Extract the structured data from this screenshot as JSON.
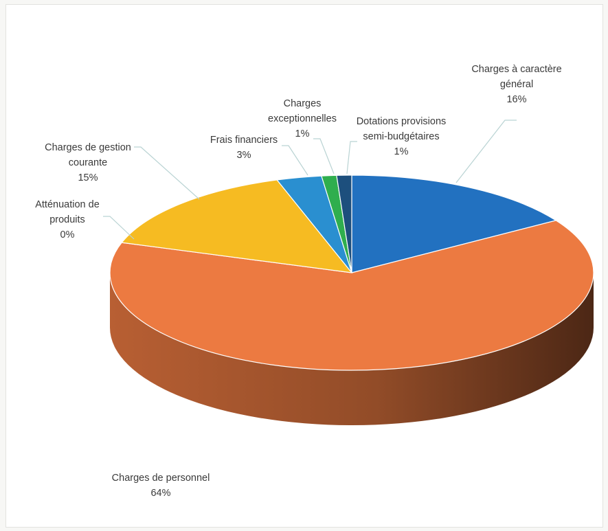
{
  "chart_data": {
    "type": "pie",
    "style": "3d",
    "title": "",
    "slices": [
      {
        "name": "Charges à caractère général",
        "label_lines": [
          "Charges à caractère",
          "général"
        ],
        "value": 16,
        "display": "16%",
        "color": "#2271c0"
      },
      {
        "name": "Charges de personnel",
        "label_lines": [
          "Charges de personnel"
        ],
        "value": 64,
        "display": "64%",
        "color": "#ec7a41"
      },
      {
        "name": "Atténuation de produits",
        "label_lines": [
          "Atténuation de",
          "produits"
        ],
        "value": 0,
        "display": "0%",
        "color": "#a5a5a5"
      },
      {
        "name": "Charges de gestion courante",
        "label_lines": [
          "Charges de gestion",
          "courante"
        ],
        "value": 15,
        "display": "15%",
        "color": "#f6bb22"
      },
      {
        "name": "Frais financiers",
        "label_lines": [
          "Frais financiers"
        ],
        "value": 3,
        "display": "3%",
        "color": "#2a8fd0"
      },
      {
        "name": "Charges exceptionnelles",
        "label_lines": [
          "Charges",
          "exceptionnelles"
        ],
        "value": 1,
        "display": "1%",
        "color": "#2fae4e"
      },
      {
        "name": "Dotations provisions semi-budgétaires",
        "label_lines": [
          "Dotations provisions",
          "semi-budgétaires"
        ],
        "value": 1,
        "display": "1%",
        "color": "#1d4f7d"
      }
    ]
  }
}
